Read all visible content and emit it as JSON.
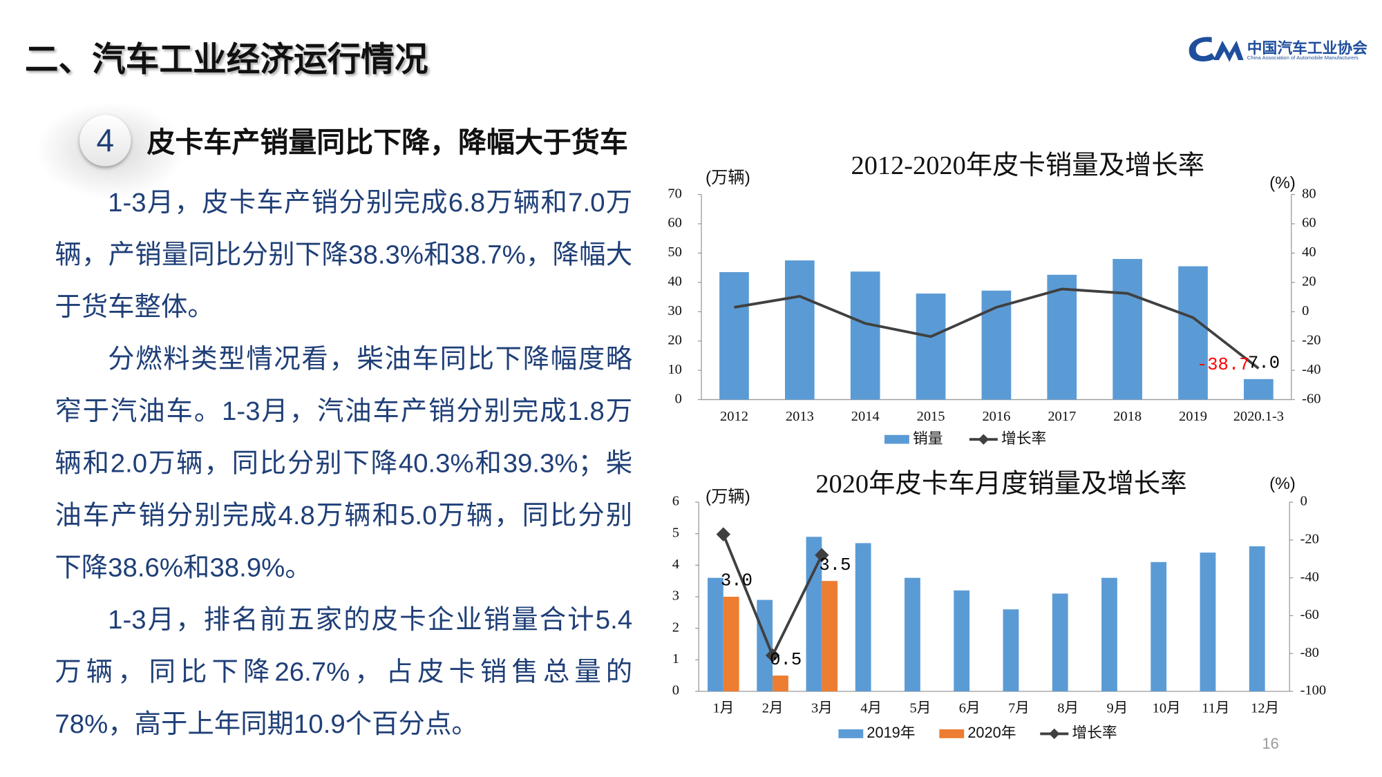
{
  "header": {
    "title": "二、汽车工业经济运行情况",
    "logo_name": "中国汽车工业协会",
    "logo_english": "China Association of Automobile Manufacturers"
  },
  "section": {
    "number": "4",
    "heading": "皮卡车产销量同比下降，降幅大于货车"
  },
  "paragraphs": [
    "1-3月，皮卡车产销分别完成6.8万辆和7.0万辆，产销量同比分别下降38.3%和38.7%，降幅大于货车整体。",
    "分燃料类型情况看，柴油车同比下降幅度略窄于汽油车。1-3月，汽油车产销分别完成1.8万辆和2.0万辆，同比分别下降40.3%和39.3%；柴油车产销分别完成4.8万辆和5.0万辆，同比分别下降38.6%和38.9%。",
    "1-3月，排名前五家的皮卡企业销量合计5.4万辆，同比下降26.7%，占皮卡销售总量的78%，高于上年同期10.9个百分点。"
  ],
  "page_number": "16",
  "chart_data": [
    {
      "type": "combo",
      "title": "2012-2020年皮卡销量及增长率",
      "y_label": "(万辆)",
      "y2_label": "(%)",
      "categories": [
        "2012",
        "2013",
        "2014",
        "2015",
        "2016",
        "2017",
        "2018",
        "2019",
        "2020.1-3"
      ],
      "series": [
        {
          "name": "销量",
          "type": "bar",
          "color": "#5b9bd5",
          "values": [
            43.5,
            47.5,
            43.7,
            36.2,
            37.2,
            42.6,
            48,
            45.5,
            7.0
          ],
          "value_labels": [
            null,
            null,
            null,
            null,
            null,
            null,
            null,
            null,
            "7.0"
          ],
          "label_color": "#000000"
        },
        {
          "name": "增长率",
          "type": "line",
          "axis": "y2",
          "color": "#404040",
          "marker": false,
          "values": [
            3,
            10.5,
            -8,
            -17,
            3,
            15.5,
            12.5,
            -4,
            -38.7
          ],
          "value_labels": [
            null,
            null,
            null,
            null,
            null,
            null,
            null,
            null,
            "-38.7"
          ],
          "label_color": "#ff0000"
        }
      ],
      "ylim": [
        0,
        70
      ],
      "yticks": [
        0,
        10,
        20,
        30,
        40,
        50,
        60,
        70
      ],
      "y2lim": [
        -60,
        80
      ],
      "y2ticks": [
        -60,
        -40,
        -20,
        0,
        20,
        40,
        60,
        80
      ],
      "legend": "bottom"
    },
    {
      "type": "combo",
      "title": "2020年皮卡车月度销量及增长率",
      "y_label": "(万辆)",
      "y2_label": "(%)",
      "categories": [
        "1月",
        "2月",
        "3月",
        "4月",
        "5月",
        "6月",
        "7月",
        "8月",
        "9月",
        "10月",
        "11月",
        "12月"
      ],
      "series": [
        {
          "name": "2019年",
          "type": "bar",
          "color": "#5b9bd5",
          "values": [
            3.6,
            2.9,
            4.9,
            4.7,
            3.6,
            3.2,
            2.6,
            3.1,
            3.6,
            4.1,
            4.4,
            4.6
          ]
        },
        {
          "name": "2020年",
          "type": "bar",
          "color": "#ed7d31",
          "values": [
            3.0,
            0.5,
            3.5,
            null,
            null,
            null,
            null,
            null,
            null,
            null,
            null,
            null
          ],
          "value_labels": [
            "3.0",
            "0.5",
            "3.5",
            null,
            null,
            null,
            null,
            null,
            null,
            null,
            null,
            null
          ],
          "label_color": "#000000"
        },
        {
          "name": "增长率",
          "type": "line",
          "axis": "y2",
          "color": "#404040",
          "marker": true,
          "values": [
            -17,
            -81,
            -28,
            null,
            null,
            null,
            null,
            null,
            null,
            null,
            null,
            null
          ]
        }
      ],
      "ylim": [
        0,
        6
      ],
      "yticks": [
        0,
        1,
        2,
        3,
        4,
        5,
        6
      ],
      "y2lim": [
        -100,
        0
      ],
      "y2ticks": [
        -100,
        -80,
        -60,
        -40,
        -20,
        0
      ],
      "legend": "bottom"
    }
  ]
}
